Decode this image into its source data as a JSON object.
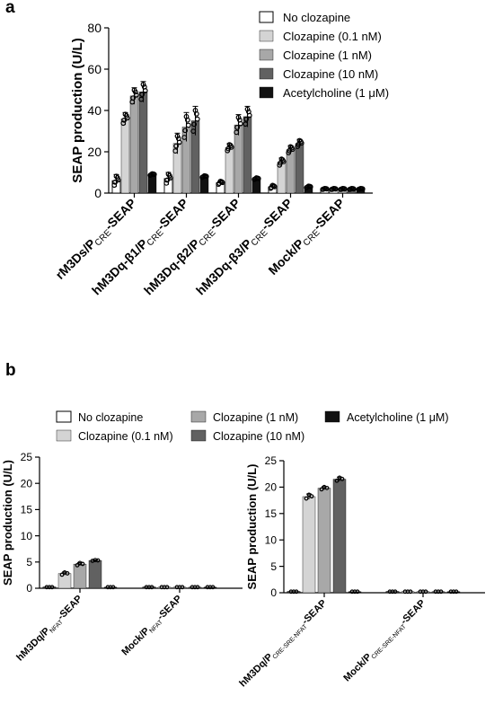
{
  "panel_labels": [
    "a",
    "b"
  ],
  "colors": {
    "none": "#ffffff",
    "c01": "#d4d4d4",
    "c1": "#a8a8a8",
    "c10": "#616161",
    "ach": "#111111"
  },
  "legend_a": [
    {
      "label": "No clozapine",
      "key": "none"
    },
    {
      "label": "Clozapine (0.1 nM)",
      "key": "c01"
    },
    {
      "label": "Clozapine (1 nM)",
      "key": "c1"
    },
    {
      "label": "Clozapine (10 nM)",
      "key": "c10"
    },
    {
      "label": "Acetylcholine (1 μM)",
      "key": "ach"
    }
  ],
  "legend_b": [
    {
      "label": "No clozapine",
      "key": "none"
    },
    {
      "label": "Clozapine (1 nM)",
      "key": "c1"
    },
    {
      "label": "Acetylcholine (1 μM)",
      "key": "ach"
    },
    {
      "label": "Clozapine (0.1 nM)",
      "key": "c01"
    },
    {
      "label": "Clozapine (10 nM)",
      "key": "c10"
    }
  ],
  "chart_data": [
    {
      "type": "bar",
      "ylabel": "SEAP production (U/L)",
      "ylim": [
        0,
        80
      ],
      "yticks": [
        0,
        20,
        40,
        60,
        80
      ],
      "categories": [
        {
          "main": "rM3Ds/P",
          "sub": "CRE",
          "tail": "-SEAP"
        },
        {
          "main": "hM3Dq-β1/P",
          "sub": "CRE",
          "tail": "-SEAP"
        },
        {
          "main": "hM3Dq-β2/P",
          "sub": "CRE",
          "tail": "-SEAP"
        },
        {
          "main": "hM3Dq-β3/P",
          "sub": "CRE",
          "tail": "-SEAP"
        },
        {
          "main": "Mock/P",
          "sub": "CRE",
          "tail": "-SEAP"
        }
      ],
      "series": [
        {
          "name": "No clozapine",
          "key": "none",
          "values": [
            6,
            7,
            5,
            3,
            2
          ],
          "err": [
            3,
            3,
            1,
            1,
            0.3
          ]
        },
        {
          "name": "Clozapine (0.1 nM)",
          "key": "c01",
          "values": [
            36,
            24,
            22,
            15,
            2
          ],
          "err": [
            3,
            5,
            2,
            2,
            0.3
          ]
        },
        {
          "name": "Clozapine (1 nM)",
          "key": "c1",
          "values": [
            47,
            32,
            33,
            21,
            2
          ],
          "err": [
            4,
            7,
            5,
            2,
            0.3
          ]
        },
        {
          "name": "Clozapine (10 nM)",
          "key": "c10",
          "values": [
            49,
            35,
            37,
            24,
            2
          ],
          "err": [
            5,
            7,
            5,
            2,
            0.3
          ]
        },
        {
          "name": "Acetylcholine (1 μM)",
          "key": "ach",
          "values": [
            9,
            8,
            7,
            3,
            2
          ],
          "err": [
            0.5,
            0.5,
            0.5,
            0.5,
            0.3
          ]
        }
      ]
    },
    {
      "type": "bar",
      "ylabel": "SEAP production (U/L)",
      "ylim": [
        0,
        25
      ],
      "yticks": [
        0,
        5,
        10,
        15,
        20,
        25
      ],
      "categories": [
        {
          "main": "hM3Dq/P",
          "sub": "NFAT",
          "tail": "-SEAP"
        },
        {
          "main": "Mock/P",
          "sub": "NFAT",
          "tail": "-SEAP"
        }
      ],
      "series": [
        {
          "name": "No clozapine",
          "key": "none",
          "values": [
            0.2,
            0.2
          ],
          "err": [
            0,
            0
          ]
        },
        {
          "name": "Clozapine (0.1 nM)",
          "key": "c01",
          "values": [
            2.8,
            0.2
          ],
          "err": [
            0.3,
            0
          ]
        },
        {
          "name": "Clozapine (1 nM)",
          "key": "c1",
          "values": [
            4.6,
            0.2
          ],
          "err": [
            0.3,
            0
          ]
        },
        {
          "name": "Clozapine (10 nM)",
          "key": "c10",
          "values": [
            5.3,
            0.2
          ],
          "err": [
            0.1,
            0
          ]
        },
        {
          "name": "Acetylcholine (1 μM)",
          "key": "ach",
          "values": [
            0.2,
            0.2
          ],
          "err": [
            0,
            0
          ]
        }
      ]
    },
    {
      "type": "bar",
      "ylabel": "SEAP production (U/L)",
      "ylim": [
        0,
        25
      ],
      "yticks": [
        0,
        5,
        10,
        15,
        20,
        25
      ],
      "categories": [
        {
          "main": "hM3Dq/P",
          "sub": "CRE-SRE-NFAT",
          "tail": "-SEAP"
        },
        {
          "main": "Mock/P",
          "sub": "CRE-SRE-NFAT",
          "tail": "-SEAP"
        }
      ],
      "series": [
        {
          "name": "No clozapine",
          "key": "none",
          "values": [
            0.2,
            0.2
          ],
          "err": [
            0,
            0
          ]
        },
        {
          "name": "Clozapine (0.1 nM)",
          "key": "c01",
          "values": [
            18.2,
            0.2
          ],
          "err": [
            0.5,
            0
          ]
        },
        {
          "name": "Clozapine (1 nM)",
          "key": "c1",
          "values": [
            19.8,
            0.2
          ],
          "err": [
            0.3,
            0
          ]
        },
        {
          "name": "Clozapine (10 nM)",
          "key": "c10",
          "values": [
            21.5,
            0.2
          ],
          "err": [
            0.4,
            0
          ]
        },
        {
          "name": "Acetylcholine (1 μM)",
          "key": "ach",
          "values": [
            0.2,
            0.2
          ],
          "err": [
            0,
            0
          ]
        }
      ]
    }
  ]
}
